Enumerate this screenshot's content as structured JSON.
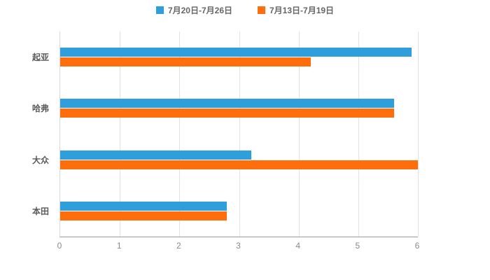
{
  "chart_data": {
    "type": "bar",
    "orientation": "horizontal",
    "title": "",
    "xlabel": "",
    "ylabel": "",
    "categories": [
      "起亚",
      "哈弗",
      "大众",
      "本田"
    ],
    "series": [
      {
        "name": "7月20日-7月26日",
        "color": "#2E9FDA",
        "values": [
          5.9,
          5.6,
          3.2,
          2.8
        ]
      },
      {
        "name": "7月13日-7月19日",
        "color": "#FF6E0D",
        "values": [
          4.2,
          5.6,
          6.0,
          2.8
        ]
      }
    ],
    "xlim": [
      0,
      6
    ],
    "xticks": [
      0,
      1,
      2,
      3,
      4,
      5,
      6
    ],
    "grid": true,
    "legend_position": "top",
    "background": "#ffffff",
    "gridline_color": "#e2e2e2",
    "axis_line_color": "#9b9b9b"
  }
}
